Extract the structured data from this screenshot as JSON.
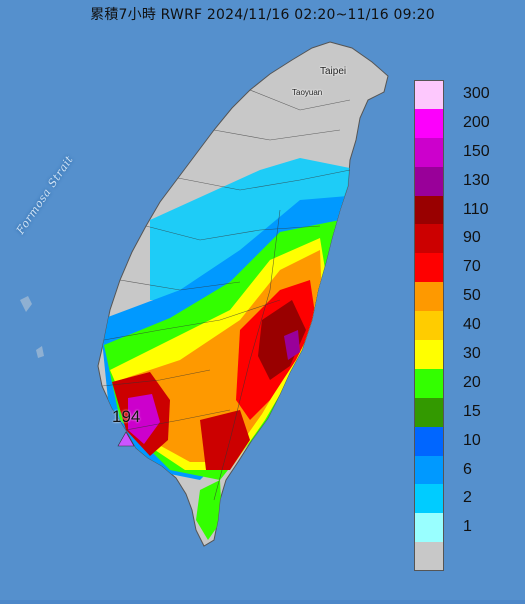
{
  "title": "累積7小時 RWRF 2024/11/16 02:20~11/16 09:20",
  "labels": {
    "strait": "Formosa Strait",
    "taipei": "Taipei",
    "taoyuan": "Taoyuan",
    "max_value": "194"
  },
  "legend": {
    "unit": "",
    "items": [
      {
        "label": "300",
        "color": "#fdc8fd"
      },
      {
        "label": "200",
        "color": "#fc00fc"
      },
      {
        "label": "150",
        "color": "#cc00cc"
      },
      {
        "label": "130",
        "color": "#990099"
      },
      {
        "label": "110",
        "color": "#990000"
      },
      {
        "label": "90",
        "color": "#cc0000"
      },
      {
        "label": "70",
        "color": "#fe0000"
      },
      {
        "label": "50",
        "color": "#fe9900"
      },
      {
        "label": "40",
        "color": "#ffcc00"
      },
      {
        "label": "30",
        "color": "#ffff00"
      },
      {
        "label": "20",
        "color": "#33ff00"
      },
      {
        "label": "15",
        "color": "#339900"
      },
      {
        "label": "10",
        "color": "#0066ff"
      },
      {
        "label": "6",
        "color": "#0099ff"
      },
      {
        "label": "2",
        "color": "#00ccff"
      },
      {
        "label": "1",
        "color": "#99ffff"
      },
      {
        "label": "",
        "color": "#c8c8c8"
      }
    ]
  }
}
